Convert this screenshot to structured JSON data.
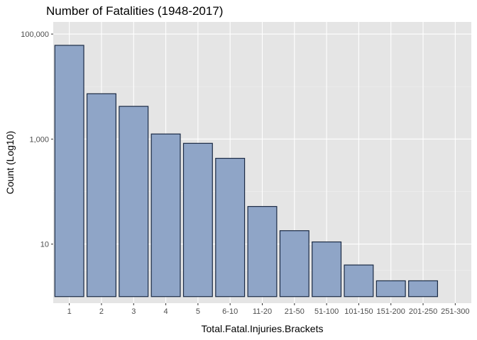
{
  "chart_data": {
    "type": "bar",
    "title": "Number of Fatalities (1948-2017)",
    "xlabel": "Total.Fatal.Injuries.Brackets",
    "ylabel": "Count (Log10)",
    "y_scale": "log10",
    "categories": [
      "1",
      "2",
      "3",
      "4",
      "5",
      "6-10",
      "11-20",
      "21-50",
      "51-100",
      "101-150",
      "151-200",
      "201-250",
      "251-300"
    ],
    "values": [
      61000,
      7300,
      4200,
      1250,
      830,
      430,
      52,
      18,
      11,
      4,
      2,
      2,
      1
    ],
    "y_ticks": [
      10,
      1000,
      100000
    ],
    "y_tick_labels": [
      "10",
      "1,000",
      "100,000"
    ],
    "ylim": [
      0.75,
      170000
    ],
    "grid": true,
    "legend": "none",
    "colors": {
      "panel_background": "#e5e5e5",
      "grid_major": "#ffffff",
      "grid_minor": "#f0f0f0",
      "bar_fill": "#8fa5c7",
      "bar_stroke": "#1a2a44",
      "tick_text": "#4d4d4d",
      "axis_text": "#000000"
    }
  }
}
